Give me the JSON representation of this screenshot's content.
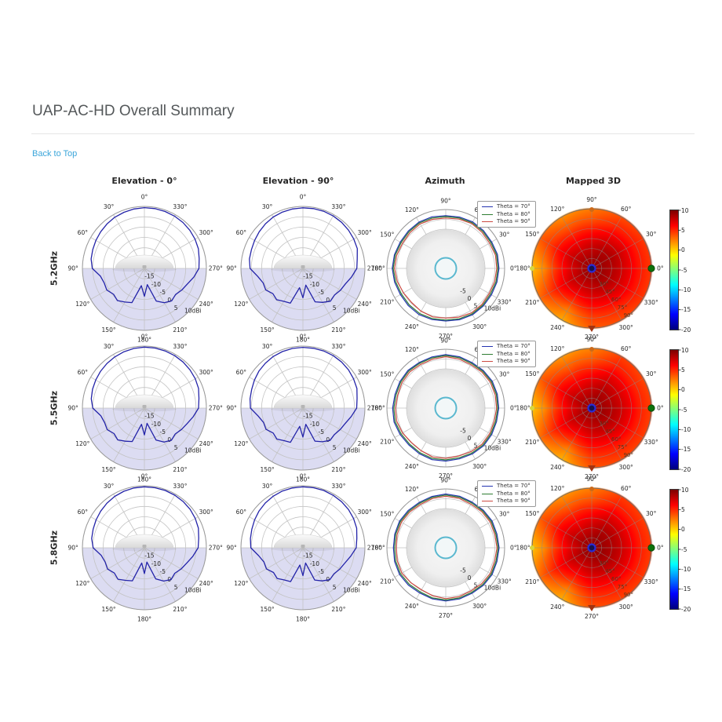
{
  "header": {
    "title": "UAP-AC-HD Overall Summary",
    "back_link": "Back to Top"
  },
  "columns": [
    "Elevation - 0°",
    "Elevation - 90°",
    "Azimuth",
    "Mapped 3D"
  ],
  "colors": {
    "link_blue": "#3aa5da",
    "elevation_line": "#2323a8",
    "below_horizon_fill": "#dcdcf2",
    "azimuth_blue": "#2433b0",
    "azimuth_green": "#2e7d32",
    "azimuth_red": "#cc4b42",
    "grid": "#c3c3c3",
    "device_cyan": "#5ab8cf",
    "marker_center_blue": "#2a2ad4",
    "marker_right_green": "#0c720c",
    "marker_left_yellow": "#d6d641",
    "marker_top_orange": "#cc6a1a",
    "marker_bottom_red": "#a33310"
  },
  "chart_data": {
    "type": "polar",
    "unit": "dBi",
    "radial_axis": {
      "min": -20,
      "max": 10,
      "ring_step": 5,
      "elevation_ring_labels": [
        "-15",
        "-10",
        "-5",
        "0",
        "5",
        "10dBi"
      ],
      "azimuth_ring_labels": [
        "-5",
        "0",
        "5",
        "10dBi"
      ]
    },
    "angle_labels": [
      "0°",
      "30°",
      "60°",
      "90°",
      "120°",
      "150°",
      "180°",
      "210°",
      "240°",
      "270°",
      "300°",
      "330°"
    ],
    "mapped_theta_ring_labels": [
      "30°",
      "45°",
      "60°",
      "75°",
      "90°"
    ],
    "colorbar": {
      "min": -20,
      "max": 10,
      "ticks": [
        "10",
        "5",
        "0",
        "-5",
        "-10",
        "-15",
        "-20"
      ]
    },
    "legend": [
      {
        "label": "Theta = 70°",
        "color": "#2433b0"
      },
      {
        "label": "Theta = 80°",
        "color": "#2e7d32"
      },
      {
        "label": "Theta = 90°",
        "color": "#cc4b42"
      }
    ],
    "rows": [
      {
        "frequency": "5.2GHz",
        "elevation_0": {
          "start_deg": 0,
          "step_deg": 10,
          "gain_dbi": [
            9.4,
            9.2,
            8.9,
            8.6,
            8.1,
            7.6,
            7.1,
            6.6,
            6.2,
            5.2,
            1.6,
            0.7,
            1.0,
            -0.5,
            0.3,
            -1.2,
            -2.4,
            -11.5,
            -6.5,
            -12.0,
            -3.2,
            -0.8,
            0.5,
            -0.3,
            0.9,
            2.1,
            4.3,
            6.4,
            6.9,
            7.8,
            8.3,
            8.7,
            9.0,
            9.2,
            9.3,
            9.4
          ]
        },
        "elevation_90": {
          "start_deg": 0,
          "step_deg": 10,
          "gain_dbi": [
            9.3,
            9.2,
            9.0,
            8.7,
            8.2,
            7.6,
            7.0,
            6.5,
            6.3,
            5.6,
            2.2,
            0.5,
            0.8,
            -1.0,
            -0.2,
            -1.6,
            -2.1,
            -10.5,
            -5.8,
            -11.8,
            -2.8,
            -1.0,
            0.7,
            0.0,
            1.0,
            1.9,
            3.9,
            6.1,
            6.7,
            8.0,
            8.4,
            8.8,
            9.1,
            9.3,
            9.4,
            9.4
          ]
        },
        "azimuth": {
          "start_deg": 0,
          "step_deg": 15,
          "series": [
            {
              "label": "Theta = 70°",
              "gain_dbi": [
                7.1,
                7.3,
                7.0,
                7.2,
                7.4,
                7.1,
                6.9,
                7.2,
                7.3,
                7.0,
                6.8,
                7.1,
                7.3,
                7.0,
                6.7,
                6.9,
                7.2,
                7.0,
                6.8,
                7.1,
                7.3,
                7.1,
                6.9,
                7.0
              ]
            },
            {
              "label": "Theta = 80°",
              "gain_dbi": [
                6.6,
                6.8,
                6.5,
                6.7,
                6.9,
                6.6,
                6.4,
                6.6,
                6.8,
                6.5,
                6.3,
                6.6,
                6.8,
                6.4,
                6.1,
                6.3,
                6.6,
                6.5,
                6.3,
                6.6,
                6.8,
                6.6,
                6.3,
                6.5
              ]
            },
            {
              "label": "Theta = 90°",
              "gain_dbi": [
                6.0,
                6.2,
                5.8,
                6.1,
                6.4,
                6.0,
                5.7,
                5.9,
                6.2,
                5.8,
                5.5,
                5.9,
                6.1,
                5.6,
                4.9,
                4.6,
                5.2,
                5.6,
                5.3,
                5.7,
                6.2,
                6.0,
                5.6,
                5.8
              ]
            }
          ]
        },
        "mapped_3d": {
          "phi_step_deg": 30,
          "theta_levels_deg": [
            0,
            18,
            36,
            54,
            72,
            90
          ],
          "gain_grid_dbi": [
            [
              9.5,
              9.5,
              9.5,
              9.5,
              9.5,
              9.5,
              9.5,
              9.5,
              9.5,
              9.5,
              9.5,
              9.5
            ],
            [
              9.0,
              9.0,
              9.0,
              8.6,
              8.5,
              8.6,
              8.2,
              8.5,
              8.5,
              8.6,
              9.0,
              9.0
            ],
            [
              8.2,
              8.5,
              8.2,
              7.6,
              7.2,
              7.6,
              6.8,
              7.6,
              7.2,
              7.6,
              8.0,
              8.2
            ],
            [
              7.0,
              7.2,
              6.8,
              6.0,
              5.6,
              6.2,
              4.8,
              6.2,
              5.2,
              6.2,
              6.6,
              7.0
            ],
            [
              5.6,
              5.6,
              5.2,
              4.0,
              3.6,
              4.6,
              2.2,
              4.6,
              2.6,
              4.6,
              5.0,
              5.6
            ],
            [
              4.6,
              4.6,
              4.0,
              2.6,
              2.0,
              3.6,
              0.6,
              3.2,
              1.2,
              3.6,
              4.0,
              4.6
            ]
          ]
        }
      },
      {
        "frequency": "5.5GHz",
        "elevation_0": {
          "start_deg": 0,
          "step_deg": 10,
          "gain_dbi": [
            9.5,
            9.3,
            9.0,
            8.6,
            8.2,
            7.7,
            7.2,
            6.7,
            6.1,
            5.0,
            1.4,
            0.5,
            0.8,
            -0.8,
            0.1,
            -1.5,
            -2.8,
            -12.0,
            -7.0,
            -12.5,
            -3.5,
            -1.0,
            0.3,
            -0.5,
            0.7,
            2.0,
            4.0,
            6.2,
            6.8,
            7.9,
            8.4,
            8.8,
            9.1,
            9.3,
            9.4,
            9.5
          ]
        },
        "elevation_90": {
          "start_deg": 0,
          "step_deg": 10,
          "gain_dbi": [
            9.4,
            9.3,
            9.1,
            8.8,
            8.3,
            7.8,
            7.1,
            6.4,
            6.0,
            5.4,
            2.0,
            0.3,
            0.6,
            -1.2,
            -0.4,
            -1.8,
            -2.4,
            -11.0,
            -6.0,
            -12.0,
            -3.0,
            -1.2,
            0.4,
            -0.1,
            0.8,
            1.8,
            3.7,
            6.0,
            6.6,
            7.8,
            8.3,
            8.8,
            9.1,
            9.3,
            9.4,
            9.4
          ]
        },
        "azimuth": {
          "start_deg": 0,
          "step_deg": 15,
          "series": [
            {
              "label": "Theta = 70°",
              "gain_dbi": [
                7.0,
                7.2,
                7.4,
                7.1,
                6.8,
                7.1,
                7.3,
                7.0,
                6.9,
                7.2,
                7.0,
                6.8,
                7.1,
                7.3,
                6.9,
                6.6,
                6.9,
                7.2,
                7.0,
                6.8,
                7.0,
                7.2,
                7.0,
                6.8
              ]
            },
            {
              "label": "Theta = 80°",
              "gain_dbi": [
                6.5,
                6.7,
                6.9,
                6.6,
                6.3,
                6.6,
                6.8,
                6.5,
                6.4,
                6.7,
                6.5,
                6.2,
                6.5,
                6.7,
                6.3,
                6.0,
                6.3,
                6.6,
                6.4,
                6.2,
                6.5,
                6.7,
                6.5,
                6.3
              ]
            },
            {
              "label": "Theta = 90°",
              "gain_dbi": [
                5.9,
                6.1,
                6.3,
                6.0,
                5.6,
                5.9,
                6.2,
                5.8,
                5.7,
                6.0,
                5.8,
                5.4,
                5.7,
                5.9,
                5.4,
                4.8,
                5.1,
                5.8,
                5.6,
                5.3,
                5.7,
                6.1,
                5.9,
                5.6
              ]
            }
          ]
        },
        "mapped_3d": {
          "phi_step_deg": 30,
          "theta_levels_deg": [
            0,
            18,
            36,
            54,
            72,
            90
          ],
          "gain_grid_dbi": [
            [
              9.5,
              9.5,
              9.5,
              9.5,
              9.5,
              9.5,
              9.5,
              9.5,
              9.5,
              9.5,
              9.5,
              9.5
            ],
            [
              9.0,
              8.8,
              9.0,
              8.6,
              8.4,
              8.6,
              8.0,
              8.6,
              8.4,
              8.6,
              8.8,
              9.0
            ],
            [
              8.2,
              8.0,
              8.2,
              7.4,
              7.0,
              7.6,
              6.6,
              7.6,
              7.0,
              7.6,
              8.0,
              8.2
            ],
            [
              7.0,
              6.8,
              7.0,
              5.8,
              5.4,
              6.2,
              4.6,
              6.2,
              5.0,
              6.2,
              6.6,
              7.0
            ],
            [
              5.4,
              5.2,
              5.4,
              3.8,
              3.4,
              4.6,
              2.0,
              4.6,
              2.4,
              4.8,
              5.2,
              5.4
            ],
            [
              4.4,
              4.2,
              4.4,
              2.4,
              1.8,
              3.4,
              0.4,
              3.0,
              1.0,
              3.8,
              4.2,
              4.4
            ]
          ]
        }
      },
      {
        "frequency": "5.8GHz",
        "elevation_0": {
          "start_deg": 0,
          "step_deg": 10,
          "gain_dbi": [
            9.5,
            9.4,
            9.1,
            8.7,
            8.2,
            7.6,
            7.0,
            6.4,
            5.9,
            4.8,
            1.2,
            0.2,
            0.6,
            -1.0,
            -0.1,
            -1.8,
            -3.0,
            -12.5,
            -7.5,
            -13.0,
            -4.0,
            -1.4,
            0.1,
            -0.8,
            0.5,
            1.8,
            3.8,
            6.0,
            6.7,
            7.8,
            8.4,
            8.9,
            9.2,
            9.4,
            9.5,
            9.5
          ]
        },
        "elevation_90": {
          "start_deg": 0,
          "step_deg": 10,
          "gain_dbi": [
            9.5,
            9.4,
            9.2,
            8.8,
            8.3,
            7.7,
            7.0,
            6.3,
            5.8,
            5.2,
            1.8,
            0.1,
            0.4,
            -1.4,
            -0.6,
            -2.0,
            -2.6,
            -11.5,
            -6.5,
            -12.5,
            -3.4,
            -1.5,
            0.2,
            -0.4,
            0.6,
            1.6,
            3.5,
            5.8,
            6.5,
            7.7,
            8.3,
            8.8,
            9.1,
            9.3,
            9.5,
            9.5
          ]
        },
        "azimuth": {
          "start_deg": 0,
          "step_deg": 15,
          "series": [
            {
              "label": "Theta = 70°",
              "gain_dbi": [
                7.2,
                7.0,
                7.3,
                7.1,
                6.9,
                7.2,
                7.4,
                7.1,
                6.8,
                7.0,
                7.2,
                6.9,
                6.7,
                7.0,
                7.2,
                6.9,
                6.6,
                6.9,
                7.1,
                7.0,
                6.8,
                7.1,
                7.3,
                7.0
              ]
            },
            {
              "label": "Theta = 80°",
              "gain_dbi": [
                6.7,
                6.5,
                6.8,
                6.6,
                6.4,
                6.7,
                6.9,
                6.6,
                6.3,
                6.5,
                6.7,
                6.4,
                6.1,
                6.4,
                6.6,
                6.3,
                6.0,
                6.4,
                6.6,
                6.5,
                6.3,
                6.6,
                6.8,
                6.5
              ]
            },
            {
              "label": "Theta = 90°",
              "gain_dbi": [
                6.1,
                5.9,
                6.2,
                6.0,
                5.7,
                6.1,
                6.3,
                6.0,
                5.6,
                5.9,
                6.1,
                5.7,
                5.3,
                5.6,
                5.8,
                5.2,
                4.7,
                5.4,
                5.9,
                5.8,
                5.5,
                5.9,
                6.2,
                5.8
              ]
            }
          ]
        },
        "mapped_3d": {
          "phi_step_deg": 30,
          "theta_levels_deg": [
            0,
            18,
            36,
            54,
            72,
            90
          ],
          "gain_grid_dbi": [
            [
              9.6,
              9.6,
              9.6,
              9.6,
              9.6,
              9.6,
              9.6,
              9.6,
              9.6,
              9.6,
              9.6,
              9.6
            ],
            [
              9.1,
              9.0,
              9.1,
              8.7,
              8.5,
              8.7,
              8.1,
              8.7,
              8.5,
              8.7,
              9.0,
              9.1
            ],
            [
              8.3,
              8.4,
              8.3,
              7.5,
              7.1,
              7.7,
              6.7,
              7.7,
              7.1,
              7.7,
              8.1,
              8.3
            ],
            [
              7.1,
              7.0,
              7.1,
              5.9,
              5.5,
              6.3,
              4.7,
              6.3,
              5.1,
              6.3,
              6.7,
              7.1
            ],
            [
              5.5,
              5.4,
              5.5,
              3.9,
              3.5,
              4.7,
              2.1,
              4.7,
              2.5,
              4.9,
              5.3,
              5.5
            ],
            [
              4.5,
              4.4,
              4.5,
              2.5,
              1.9,
              3.5,
              0.5,
              3.1,
              1.1,
              3.9,
              4.3,
              4.5
            ]
          ]
        }
      }
    ]
  }
}
